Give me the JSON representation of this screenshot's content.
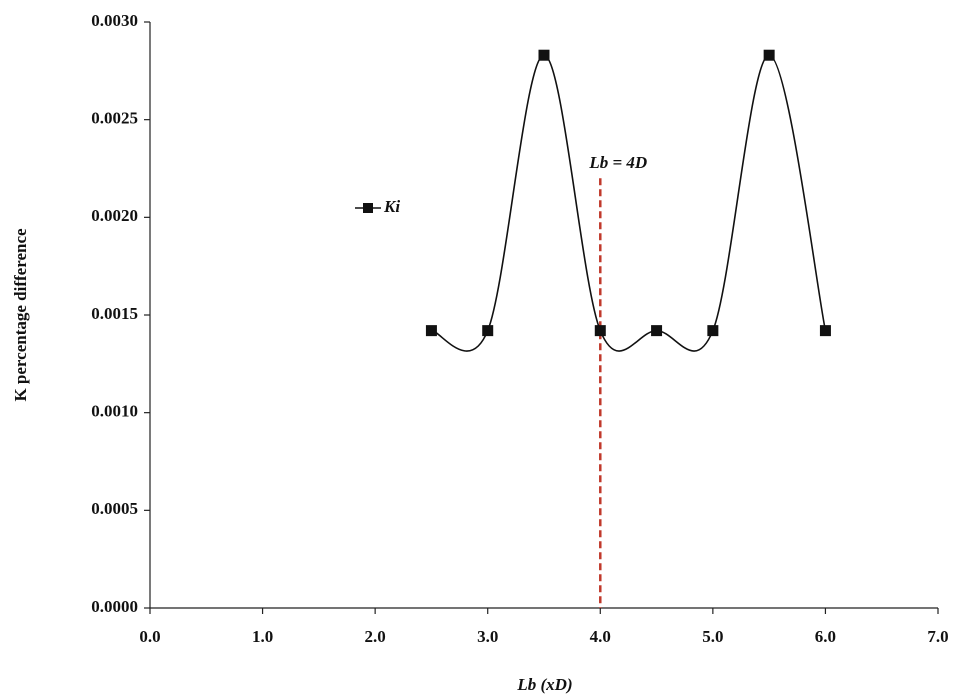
{
  "chart_data": {
    "type": "line",
    "x_label": "Lb (xD)",
    "y_label": "K percentage difference",
    "x": [
      2.5,
      3.0,
      3.5,
      4.0,
      4.5,
      5.0,
      5.5,
      6.0
    ],
    "series": [
      {
        "name": "Ki",
        "color": "#111111",
        "values": [
          0.00142,
          0.00142,
          0.00283,
          0.00142,
          0.00142,
          0.00142,
          0.00283,
          0.00142
        ]
      }
    ],
    "smooth": true,
    "marker": "square",
    "xlim": [
      0,
      7
    ],
    "xticks": [
      {
        "value": 0,
        "label": "0.0"
      },
      {
        "value": 1,
        "label": "1.0"
      },
      {
        "value": 2,
        "label": "2.0"
      },
      {
        "value": 3,
        "label": "3.0"
      },
      {
        "value": 4,
        "label": "4.0"
      },
      {
        "value": 5,
        "label": "5.0"
      },
      {
        "value": 6,
        "label": "6.0"
      },
      {
        "value": 7,
        "label": "7.0"
      }
    ],
    "ylim": [
      0,
      0.003
    ],
    "yticks": [
      {
        "value": 0,
        "label": "0.0000"
      },
      {
        "value": 0.0005,
        "label": "0.0005"
      },
      {
        "value": 0.001,
        "label": "0.0010"
      },
      {
        "value": 0.0015,
        "label": "0.0015"
      },
      {
        "value": 0.002,
        "label": "0.0020"
      },
      {
        "value": 0.0025,
        "label": "0.0025"
      },
      {
        "value": 0.003,
        "label": "0.0030"
      }
    ],
    "vline": {
      "x": 4,
      "y_end": 0.0022,
      "color": "#c0392b",
      "label": "Lb = 4D"
    }
  }
}
